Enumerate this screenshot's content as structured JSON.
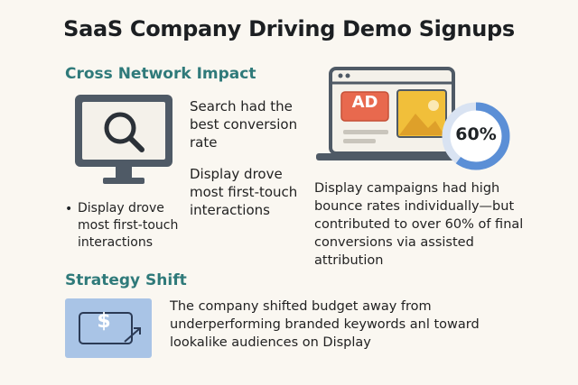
{
  "title": "SaaS Company Driving Demo Signups",
  "sections": {
    "cross_network": {
      "heading": "Cross Network Impact",
      "text_search": "Search had the best conversion rate",
      "text_display_touch": "Display drove most first-touch interactions",
      "bullet": "Display drove most first-touch interactions"
    },
    "display_panel": {
      "ad_label": "AD",
      "percent_label": "60%",
      "percent_value": 0.6,
      "description": "Display campaigns had high bounce rates individually—but contributed to over 60% of final conversions via assisted attribution"
    },
    "strategy": {
      "heading": "Strategy Shift",
      "currency_symbol": "$",
      "text": "The company shifted budget away from underperforming branded keywords anl toward lookalike audiences on Display"
    }
  },
  "colors": {
    "accent": "#2f7a7a",
    "ad_red": "#e8694e",
    "image_yellow": "#f1bf3a",
    "ring_blue": "#5b8fd6",
    "card_blue": "#a9c4e6"
  },
  "icons": {
    "monitor": "monitor-search-icon",
    "laptop": "laptop-ad-icon",
    "money": "money-transfer-icon"
  }
}
